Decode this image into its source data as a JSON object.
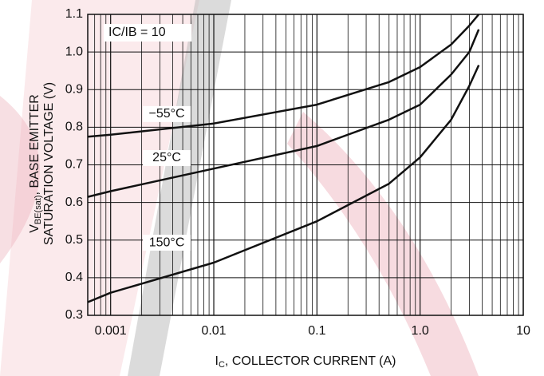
{
  "chart_data": {
    "type": "line",
    "x_label": {
      "main": "I",
      "sub": "C",
      "rest": ", COLLECTOR CURRENT (A)"
    },
    "y_label": {
      "main": "V",
      "sub": "BE(sat)",
      "rest": ", BASE EMITTER",
      "line2": "SATURATION VOLTAGE (V)"
    },
    "annotations": [
      "IC/IB = 10"
    ],
    "x": [
      0.0006,
      0.001,
      0.01,
      0.1,
      0.5,
      1,
      2,
      3,
      3.7
    ],
    "series": [
      {
        "name": "−55°C",
        "color": "#111111",
        "values": [
          0.775,
          0.78,
          0.81,
          0.86,
          0.92,
          0.96,
          1.02,
          1.07,
          1.1
        ]
      },
      {
        "name": "25°C",
        "color": "#111111",
        "values": [
          0.615,
          0.63,
          0.69,
          0.75,
          0.82,
          0.86,
          0.94,
          1.0,
          1.06
        ]
      },
      {
        "name": "150°C",
        "color": "#111111",
        "values": [
          0.335,
          0.36,
          0.44,
          0.55,
          0.65,
          0.72,
          0.82,
          0.91,
          0.965
        ]
      }
    ],
    "xlim": [
      0.0006,
      10
    ],
    "xticks": [
      0.001,
      0.01,
      0.1,
      {
        "value": 1,
        "label": "1.0"
      },
      10
    ],
    "ylim": [
      0.3,
      1.1
    ],
    "yticks": [
      0.3,
      0.4,
      0.5,
      0.6,
      0.7,
      0.8,
      0.9,
      {
        "value": 1.0,
        "label": "1.0"
      },
      1.1
    ],
    "x_log": true,
    "grid": true
  }
}
